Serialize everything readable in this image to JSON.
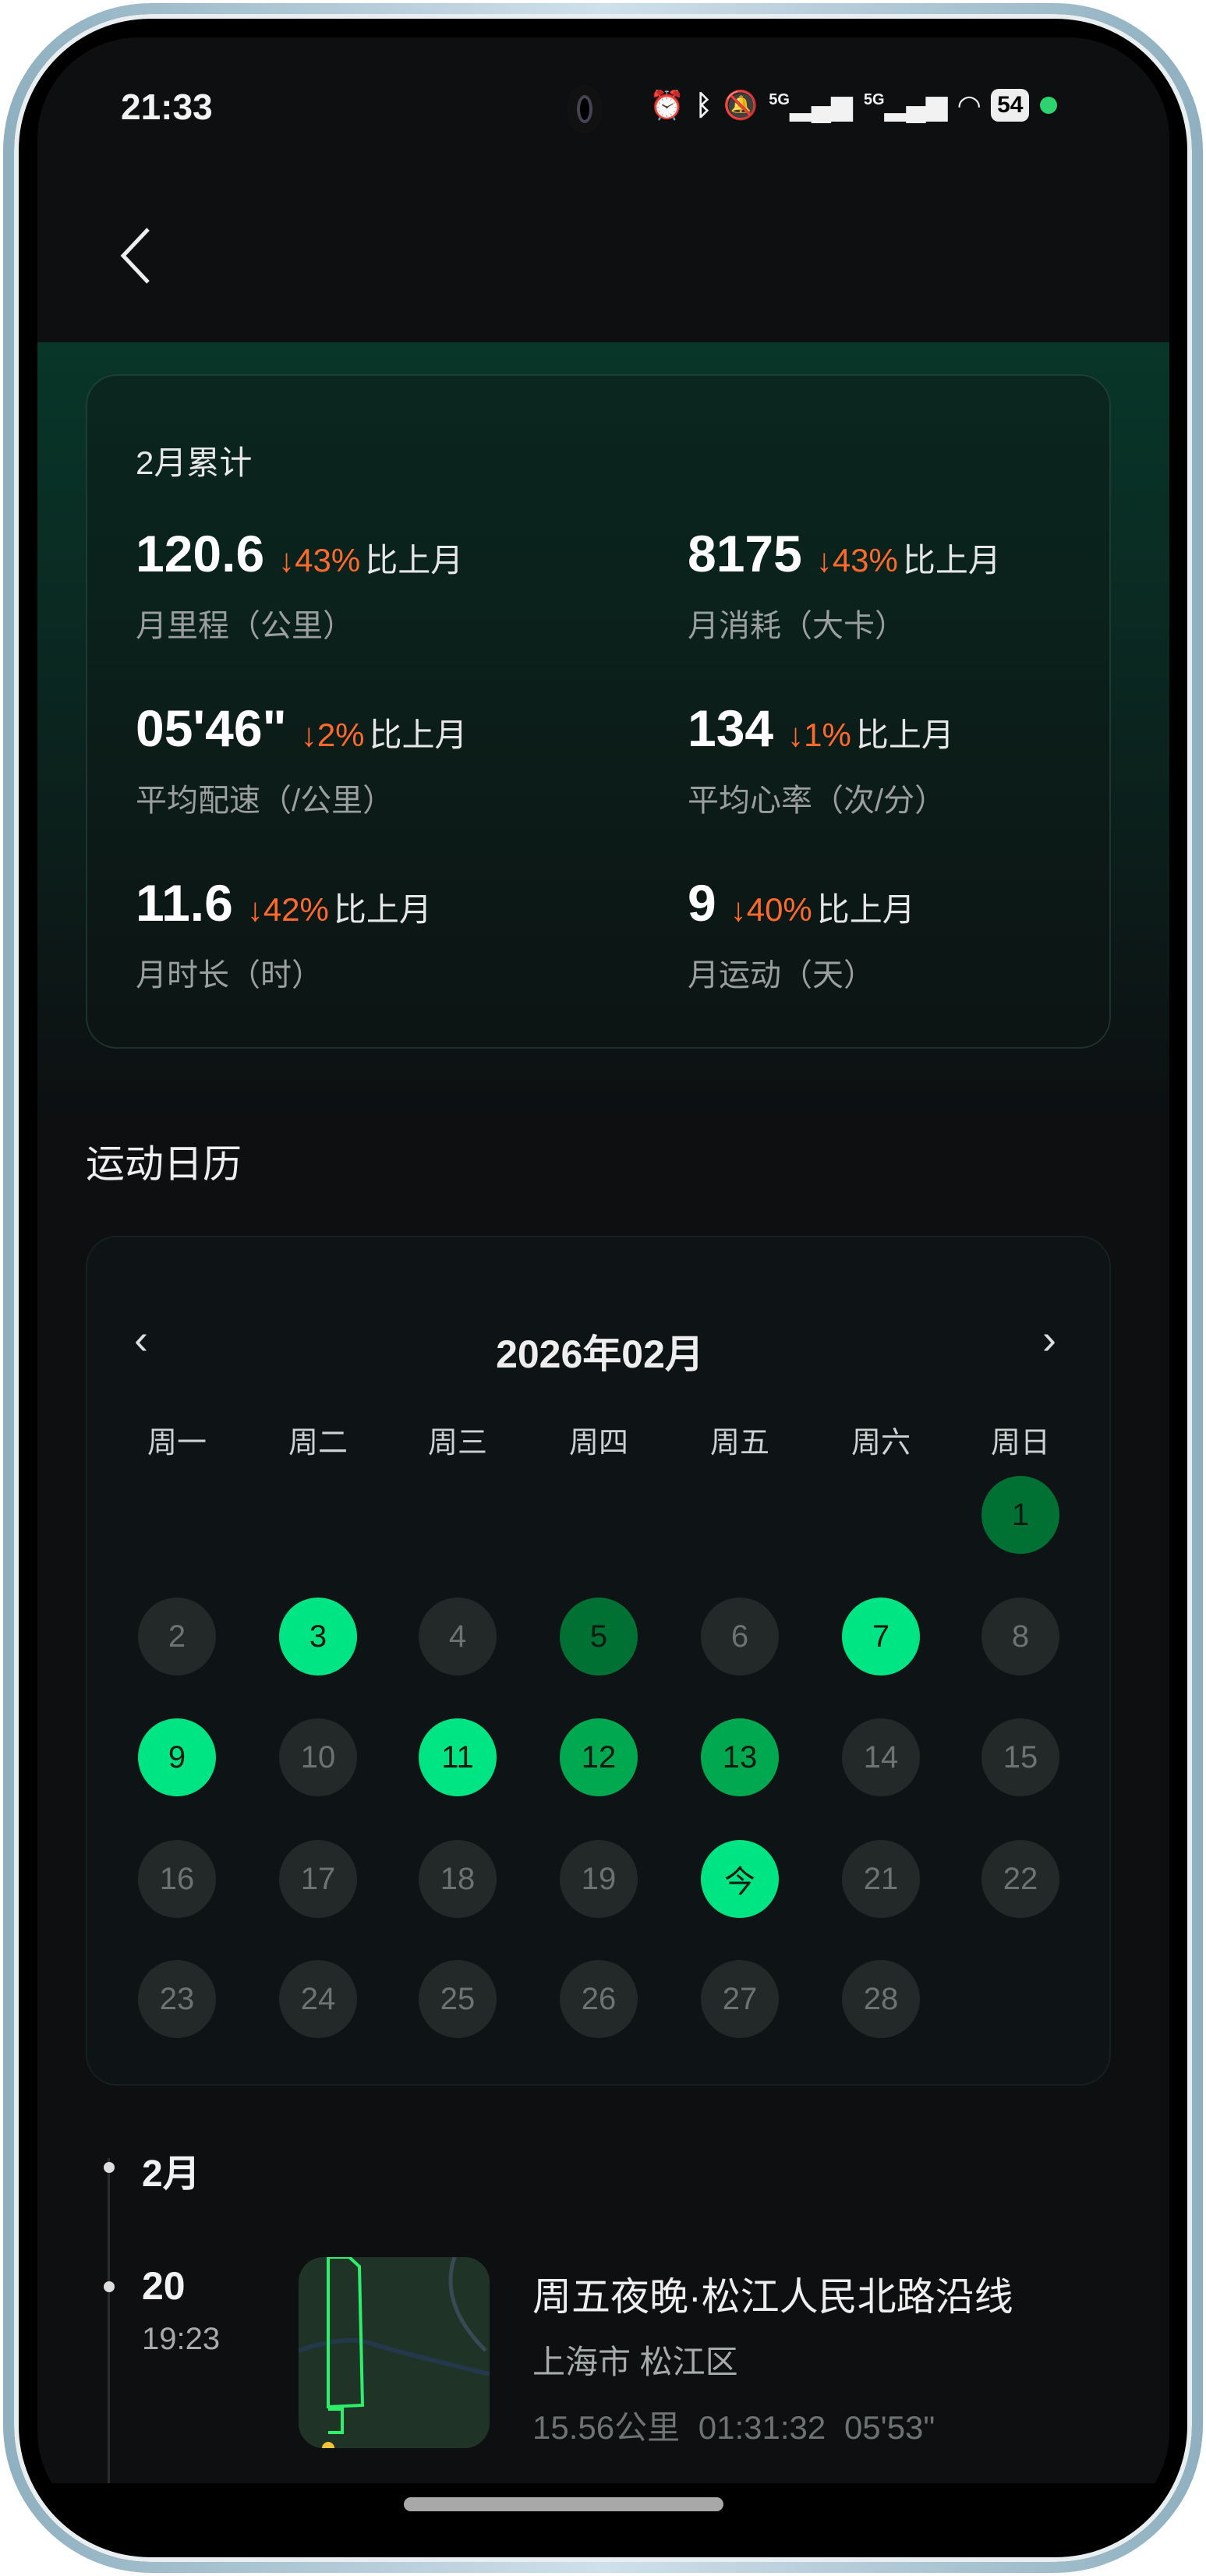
{
  "status_bar": {
    "time": "21:33",
    "icons": [
      "alarm-icon",
      "bluetooth-icon",
      "mute-icon",
      "signal-5g-icon",
      "signal-5g-icon",
      "wifi-icon"
    ],
    "network_labels": [
      "5G",
      "5G"
    ],
    "battery": "54"
  },
  "summary": {
    "title": "2月累计",
    "compare_label": "比上月",
    "stats": [
      {
        "value": "120.6",
        "change": "↓43%",
        "label": "月里程（公里）"
      },
      {
        "value": "8175",
        "change": "↓43%",
        "label": "月消耗（大卡）"
      },
      {
        "value": "05'46\"",
        "change": "↓2%",
        "label": "平均配速（/公里）"
      },
      {
        "value": "134",
        "change": "↓1%",
        "label": "平均心率（次/分）"
      },
      {
        "value": "11.6",
        "change": "↓42%",
        "label": "月时长（时）"
      },
      {
        "value": "9",
        "change": "↓40%",
        "label": "月运动（天）"
      }
    ]
  },
  "calendar": {
    "section_title": "运动日历",
    "month_label": "2026年02月",
    "prev": "‹",
    "next": "›",
    "weekdays": [
      "周一",
      "周二",
      "周三",
      "周四",
      "周五",
      "周六",
      "周日"
    ],
    "first_weekday_index": 6,
    "colors": {
      "high": "#00e584",
      "mid": "#00a84f",
      "low": "#007033",
      "none": "#232828"
    },
    "days": [
      {
        "d": "1",
        "level": "low"
      },
      {
        "d": "2",
        "level": "none"
      },
      {
        "d": "3",
        "level": "high"
      },
      {
        "d": "4",
        "level": "none"
      },
      {
        "d": "5",
        "level": "low"
      },
      {
        "d": "6",
        "level": "none"
      },
      {
        "d": "7",
        "level": "high"
      },
      {
        "d": "8",
        "level": "none"
      },
      {
        "d": "9",
        "level": "high"
      },
      {
        "d": "10",
        "level": "none"
      },
      {
        "d": "11",
        "level": "high"
      },
      {
        "d": "12",
        "level": "mid"
      },
      {
        "d": "13",
        "level": "mid"
      },
      {
        "d": "14",
        "level": "none"
      },
      {
        "d": "15",
        "level": "none"
      },
      {
        "d": "16",
        "level": "none"
      },
      {
        "d": "17",
        "level": "none"
      },
      {
        "d": "18",
        "level": "none"
      },
      {
        "d": "19",
        "level": "none"
      },
      {
        "d": "今",
        "level": "high"
      },
      {
        "d": "21",
        "level": "none"
      },
      {
        "d": "22",
        "level": "none"
      },
      {
        "d": "23",
        "level": "none"
      },
      {
        "d": "24",
        "level": "none"
      },
      {
        "d": "25",
        "level": "none"
      },
      {
        "d": "26",
        "level": "none"
      },
      {
        "d": "27",
        "level": "none"
      },
      {
        "d": "28",
        "level": "none"
      }
    ]
  },
  "timeline": {
    "month": "2月",
    "entries": [
      {
        "day": "20",
        "time": "19:23",
        "title": "周五夜晚·松江人民北路沿线",
        "location": "上海市 松江区",
        "distance": "15.56公里",
        "duration": "01:31:32",
        "pace": "05'53\""
      }
    ]
  }
}
